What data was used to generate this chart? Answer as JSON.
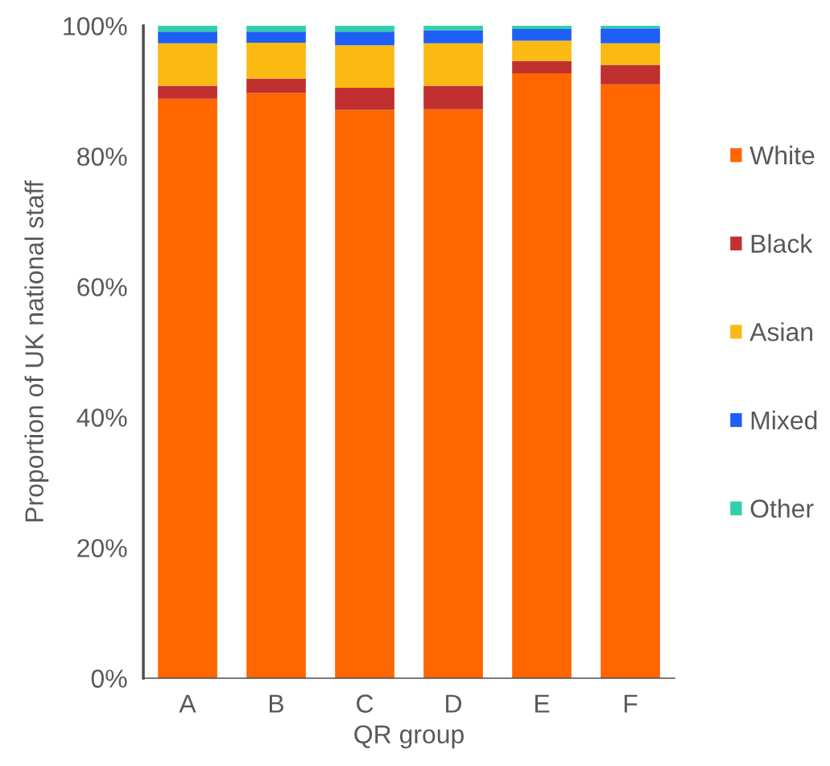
{
  "chart_data": {
    "type": "bar",
    "stacked": true,
    "xlabel": "QR group",
    "ylabel": "Proportion of UK national staff",
    "categories": [
      "A",
      "B",
      "C",
      "D",
      "E",
      "F"
    ],
    "series": [
      {
        "name": "White",
        "color": "#ff6600",
        "values": [
          88.8,
          89.7,
          87.1,
          87.2,
          92.7,
          91.0
        ]
      },
      {
        "name": "Black",
        "color": "#c0302f",
        "values": [
          2.0,
          2.2,
          3.4,
          3.6,
          1.9,
          3.0
        ]
      },
      {
        "name": "Asian",
        "color": "#fbb914",
        "values": [
          6.5,
          5.5,
          6.5,
          6.5,
          3.1,
          3.3
        ]
      },
      {
        "name": "Mixed",
        "color": "#1f5ff5",
        "values": [
          1.8,
          1.7,
          2.1,
          2.0,
          1.8,
          2.3
        ]
      },
      {
        "name": "Other",
        "color": "#31d0aa",
        "values": [
          0.9,
          0.9,
          0.9,
          0.7,
          0.5,
          0.4
        ]
      }
    ],
    "ylim": [
      0,
      100
    ],
    "yticks": [
      {
        "value": 0,
        "label": "0%"
      },
      {
        "value": 20,
        "label": "20%"
      },
      {
        "value": 40,
        "label": "40%"
      },
      {
        "value": 60,
        "label": "60%"
      },
      {
        "value": 80,
        "label": "80%"
      },
      {
        "value": 100,
        "label": "100%"
      }
    ],
    "legend": "right"
  }
}
